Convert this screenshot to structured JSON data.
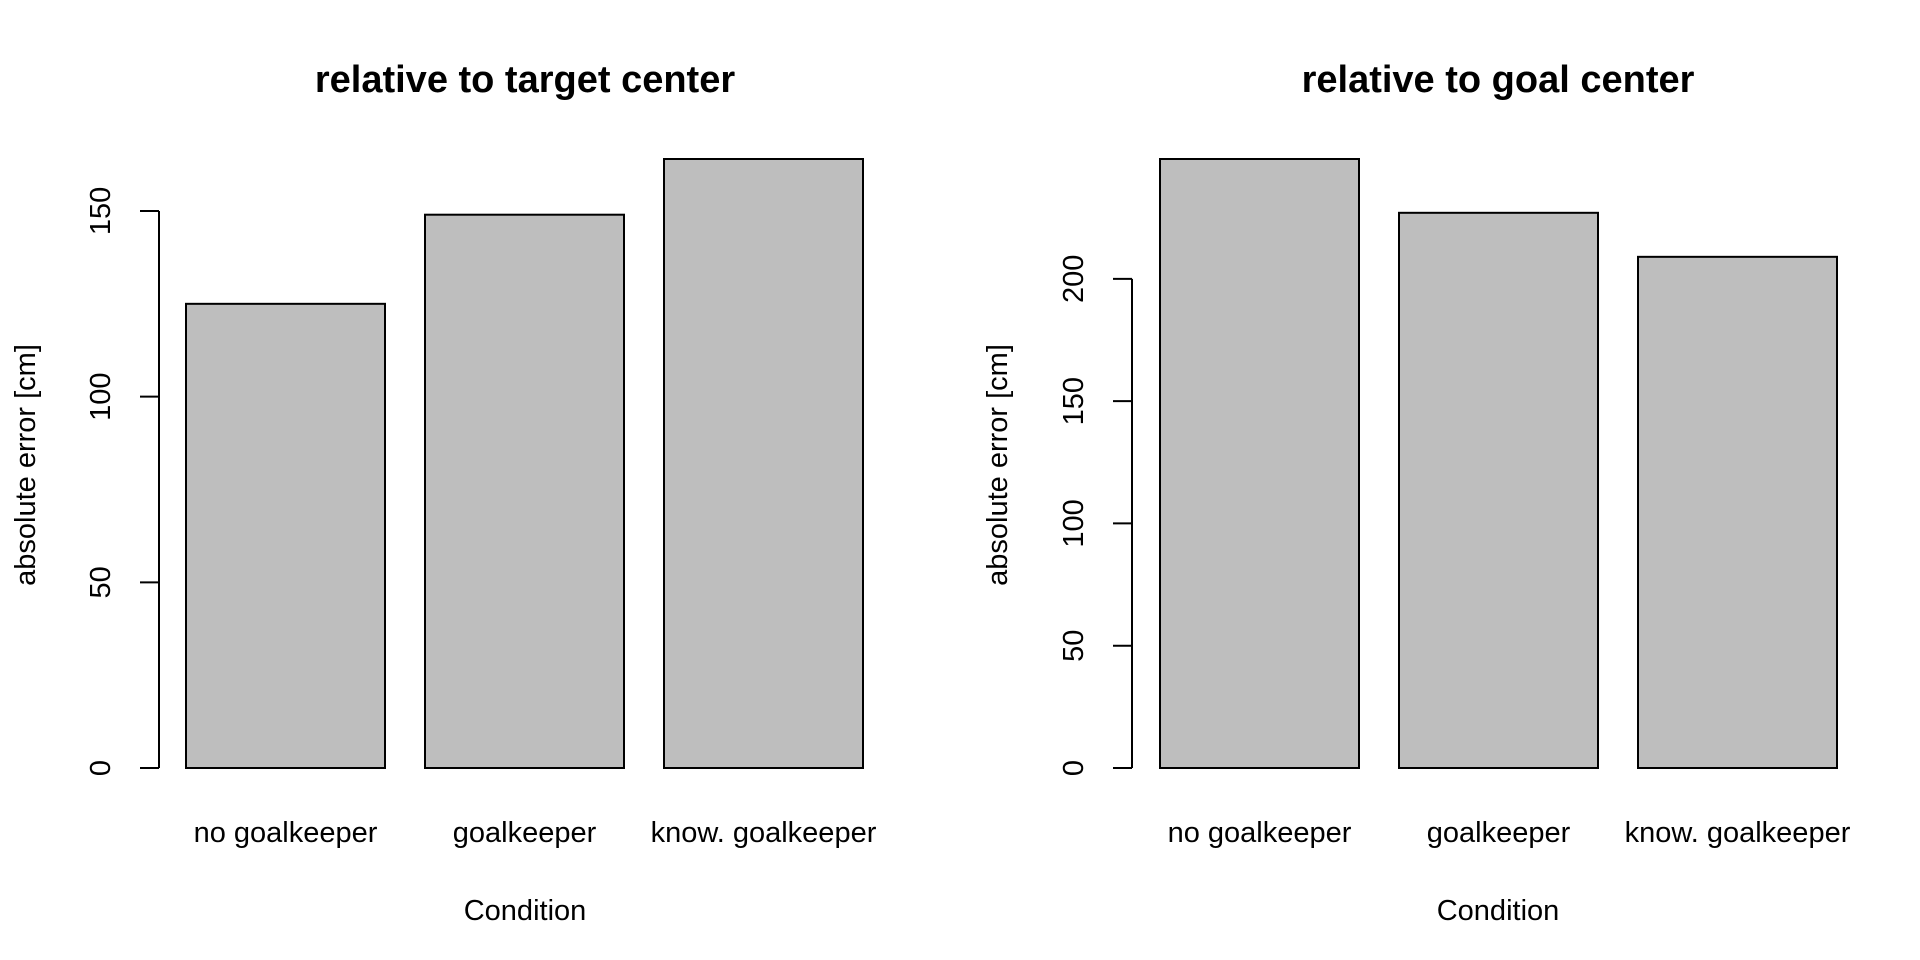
{
  "chart_data": [
    {
      "type": "bar",
      "title": "relative to target center",
      "xlabel": "Condition",
      "ylabel": "absolute error [cm]",
      "categories": [
        "no goalkeeper",
        "goalkeeper",
        "know. goalkeeper"
      ],
      "values": [
        125,
        149,
        164
      ],
      "ylim": [
        0,
        164
      ],
      "yticks": [
        0,
        50,
        100,
        150
      ],
      "bar_color": "#bebebe",
      "grid": false
    },
    {
      "type": "bar",
      "title": "relative to goal center",
      "xlabel": "Condition",
      "ylabel": "absolute error [cm]",
      "categories": [
        "no goalkeeper",
        "goalkeeper",
        "know. goalkeeper"
      ],
      "values": [
        249,
        227,
        209
      ],
      "ylim": [
        0,
        249
      ],
      "yticks": [
        0,
        50,
        100,
        150,
        200
      ],
      "bar_color": "#bebebe",
      "grid": false
    }
  ]
}
